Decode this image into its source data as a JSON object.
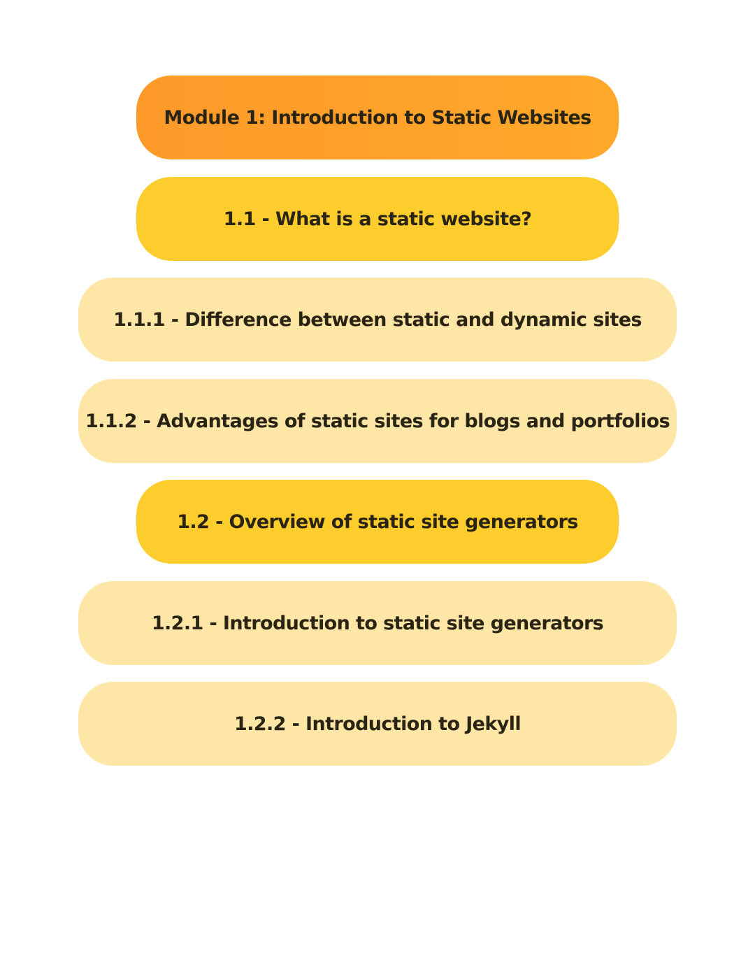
{
  "outline": {
    "module": {
      "label": "Module 1: Introduction to Static Websites",
      "color": "#fea12a"
    },
    "items": [
      {
        "label": "1.1 - What is a static website?",
        "level": 1,
        "color": "#fdcd2d"
      },
      {
        "label": "1.1.1 - Difference between static and dynamic sites",
        "level": 2,
        "color": "#fee7a6"
      },
      {
        "label": "1.1.2 - Advantages of static sites for blogs and portfolios",
        "level": 2,
        "color": "#fee7a6"
      },
      {
        "label": "1.2 - Overview of static site generators",
        "level": 1,
        "color": "#fdcd2d"
      },
      {
        "label": "1.2.1 - Introduction to static site generators",
        "level": 2,
        "color": "#fee7a6"
      },
      {
        "label": "1.2.2 - Introduction to Jekyll",
        "level": 2,
        "color": "#fee7a6"
      }
    ]
  }
}
